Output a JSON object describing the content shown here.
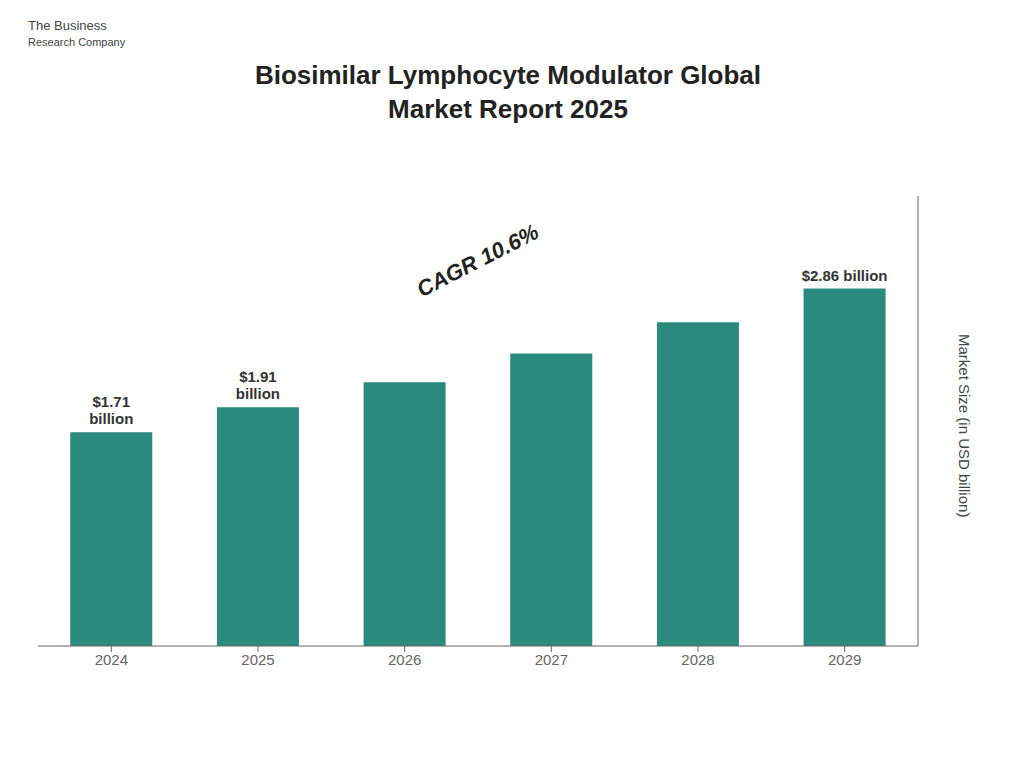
{
  "chart_data": {
    "type": "bar",
    "title": "Biosimilar Lymphocyte Modulator Global\nMarket Report 2025",
    "categories": [
      "2024",
      "2025",
      "2026",
      "2027",
      "2028",
      "2029"
    ],
    "values": [
      1.71,
      1.91,
      2.11,
      2.34,
      2.59,
      2.86
    ],
    "value_labels": [
      "$1.71\nbillion",
      "$1.91\nbillion",
      null,
      null,
      null,
      "$2.86 billion"
    ],
    "data_labels": true,
    "color": "#2a8a7e",
    "ylabel": "Market Size (in USD billion)",
    "ylim": [
      0,
      3.6
    ],
    "tick_labels": "x",
    "grid": false,
    "annotations": [
      "CAGR 10.6%",
      "The Business",
      "Research Company"
    ]
  }
}
